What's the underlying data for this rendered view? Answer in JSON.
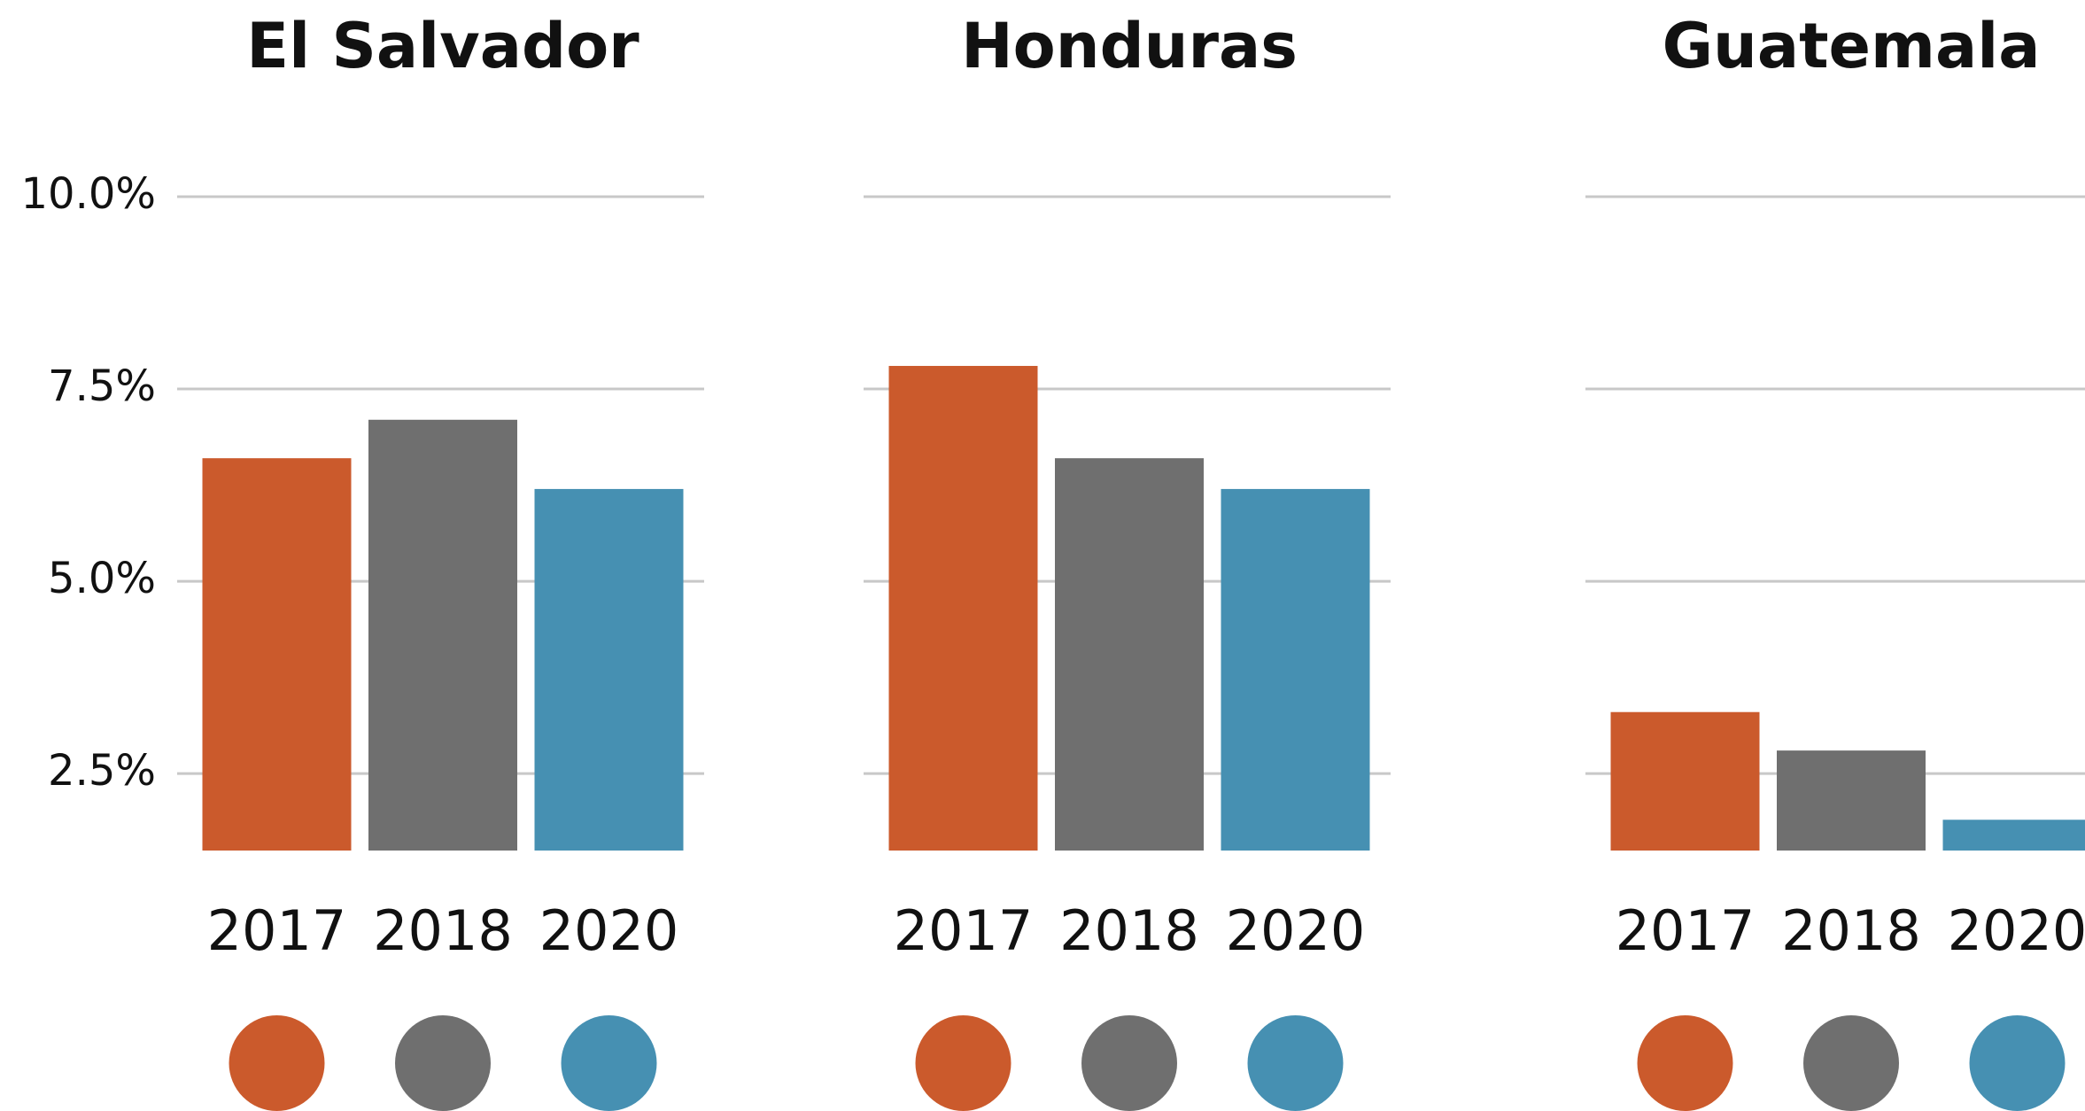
{
  "chart_data": [
    {
      "type": "bar",
      "title": "El Salvador",
      "categories": [
        "2017",
        "2018",
        "2020"
      ],
      "values": [
        6.6,
        7.1,
        6.2
      ],
      "colors": [
        "#cb5a2c",
        "#6f6f6f",
        "#4690b2"
      ],
      "ylim": [
        1.5,
        10
      ],
      "yticks": [
        {
          "value": 2.5,
          "label": "2.5%"
        },
        {
          "value": 5,
          "label": "5.0%"
        },
        {
          "value": 7.5,
          "label": "7.5%"
        },
        {
          "value": 10,
          "label": "10.0%"
        }
      ],
      "grid": true
    },
    {
      "type": "bar",
      "title": "Honduras",
      "categories": [
        "2017",
        "2018",
        "2020"
      ],
      "values": [
        7.8,
        6.6,
        6.2
      ],
      "colors": [
        "#cb5a2c",
        "#6f6f6f",
        "#4690b2"
      ],
      "ylim": [
        1.5,
        10
      ],
      "yticks": [
        2.5,
        5,
        7.5,
        10
      ],
      "grid": true
    },
    {
      "type": "bar",
      "title": "Guatemala",
      "categories": [
        "2017",
        "2018",
        "2020"
      ],
      "values": [
        3.3,
        2.8,
        1.9
      ],
      "colors": [
        "#cb5a2c",
        "#6f6f6f",
        "#4690b2"
      ],
      "ylim": [
        1.5,
        10
      ],
      "yticks": [
        2.5,
        5,
        7.5,
        10
      ],
      "grid": true
    }
  ]
}
